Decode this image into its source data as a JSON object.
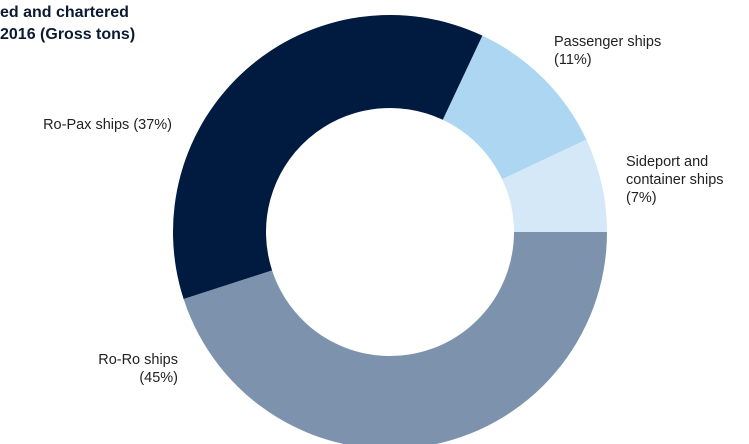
{
  "chart_data": {
    "type": "donut",
    "title": [
      "ed and chartered",
      "2016 (Gross tons)"
    ],
    "categories": [
      "Passenger ships",
      "Sideport and container ships",
      "Ro-Ro ships",
      "Ro-Pax ships"
    ],
    "values": [
      11,
      7,
      45,
      37
    ],
    "value_labels": [
      "(11%)",
      "(7%)",
      "(45%)",
      "(37%)"
    ],
    "colors": [
      "#acd6f2",
      "#d4e8f8",
      "#7d93ad",
      "#001a40"
    ]
  }
}
